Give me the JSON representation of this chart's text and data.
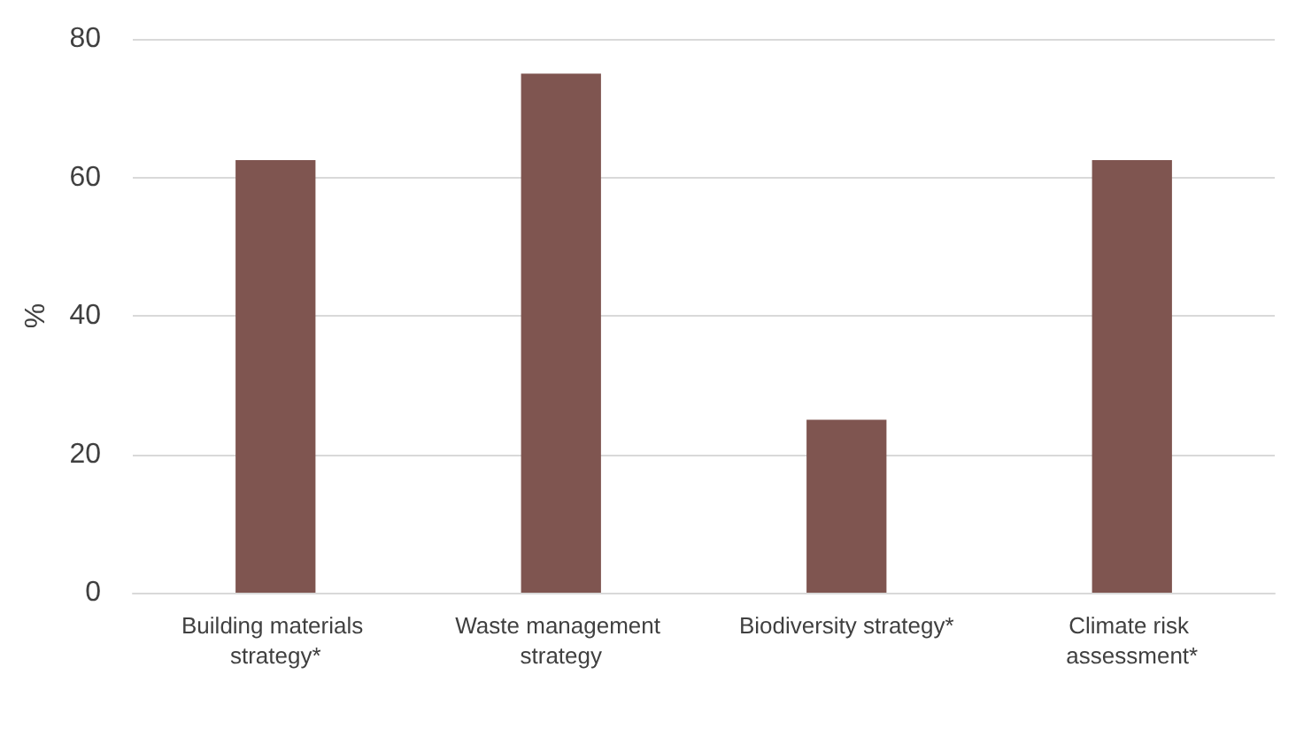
{
  "chart_data": {
    "type": "bar",
    "ylabel": "%",
    "categories": [
      "Building materials strategy*",
      "Waste management strategy",
      "Biodiversity strategy*",
      "Climate risk assessment*"
    ],
    "values": [
      62.5,
      75,
      25,
      62.5
    ],
    "color": "#7f5550",
    "ylim": [
      0,
      80
    ],
    "yticks": [
      0,
      20,
      40,
      60,
      80
    ],
    "grid": "y"
  }
}
